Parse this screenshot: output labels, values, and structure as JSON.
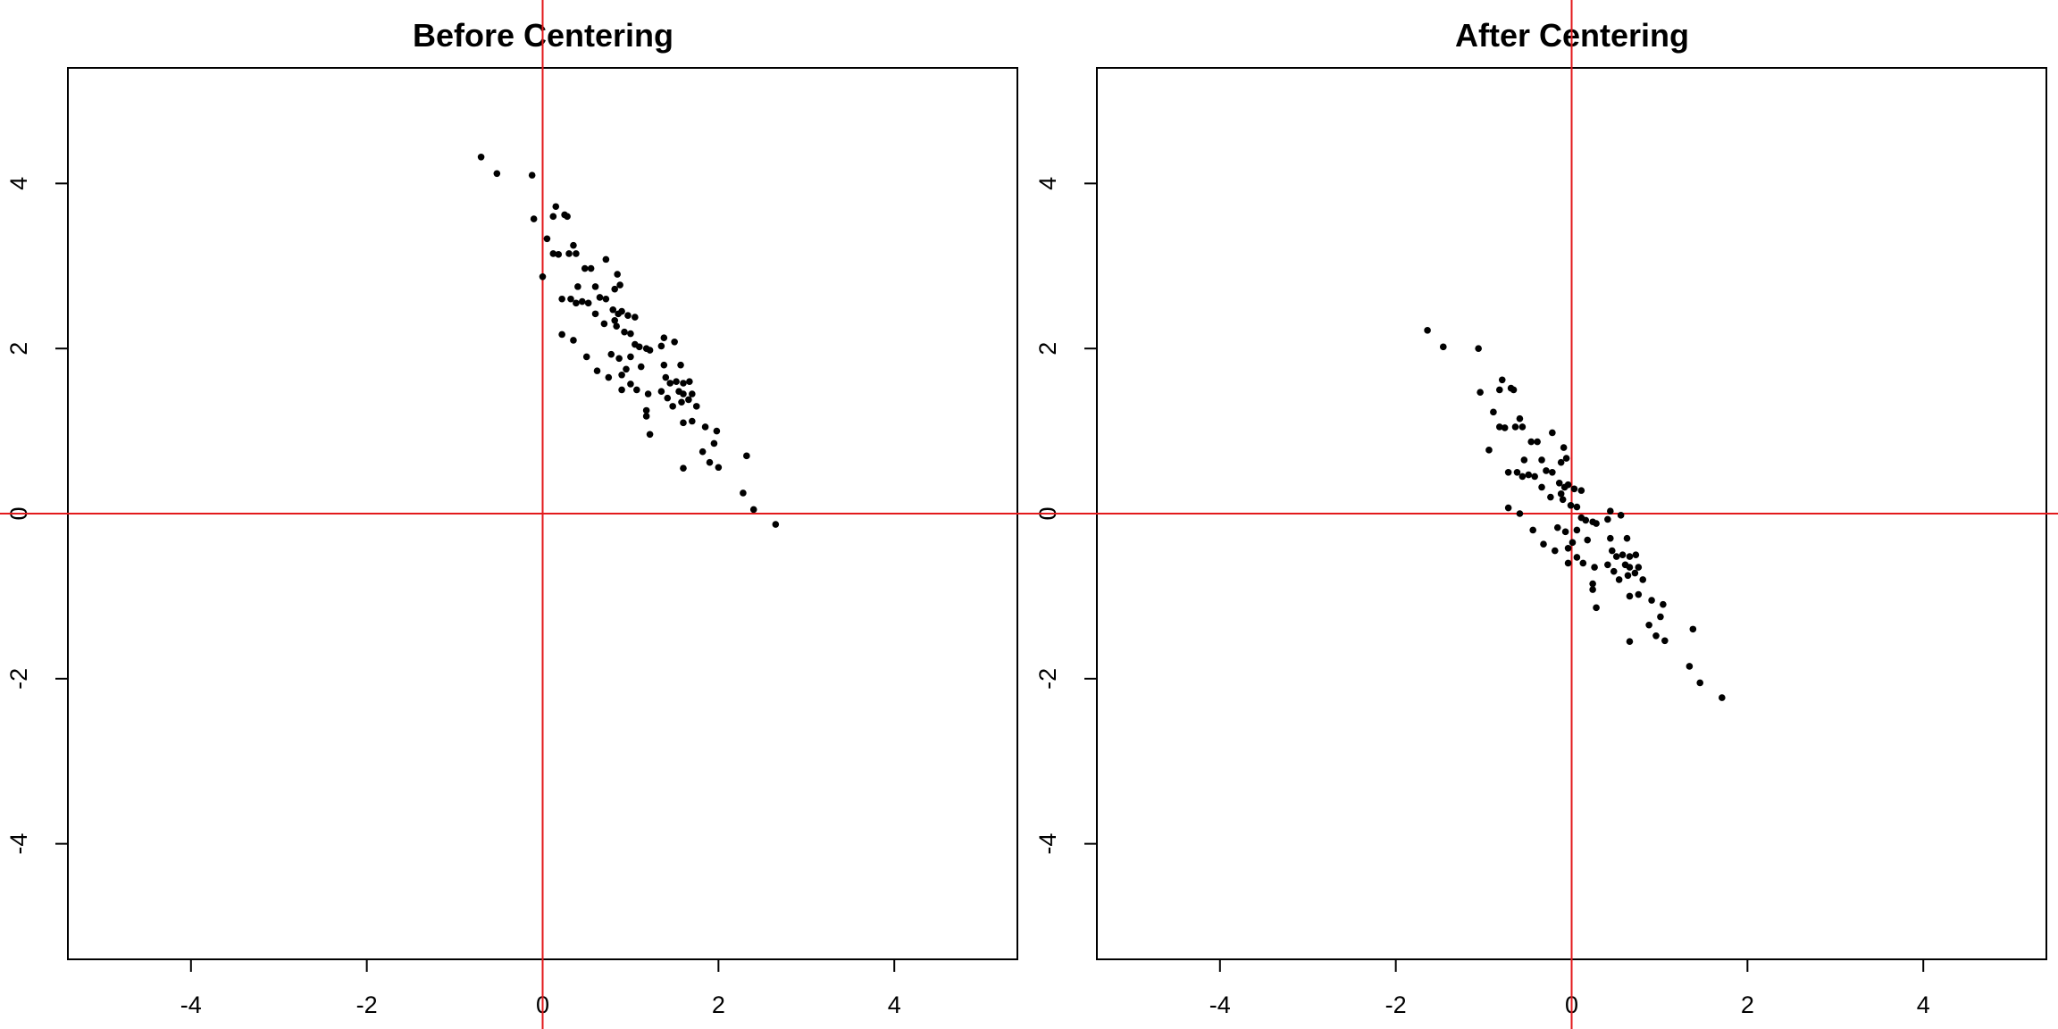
{
  "chart_data": [
    {
      "type": "scatter",
      "title": "Before Centering",
      "xlabel": "",
      "ylabel": "",
      "xlim": [
        -5.4,
        5.4
      ],
      "ylim": [
        -5.4,
        5.4
      ],
      "xticks": [
        -4,
        -2,
        0,
        2,
        4
      ],
      "yticks": [
        -4,
        -2,
        0,
        2,
        4
      ],
      "x_tick_labels": [
        "-4",
        "-2",
        "0",
        "2",
        "4"
      ],
      "y_tick_labels": [
        "-4",
        "-2",
        "0",
        "2",
        "4"
      ],
      "reference_lines": {
        "x": 0,
        "y": 0,
        "color": "#e31a1c"
      },
      "point_color": "#000000",
      "grid": false,
      "points": [
        [
          -0.7,
          4.32
        ],
        [
          -0.52,
          4.12
        ],
        [
          -0.12,
          4.1
        ],
        [
          0.15,
          3.72
        ],
        [
          0.25,
          3.62
        ],
        [
          0.28,
          3.6
        ],
        [
          -0.1,
          3.57
        ],
        [
          0.12,
          3.6
        ],
        [
          0.05,
          3.33
        ],
        [
          0.35,
          3.25
        ],
        [
          0.12,
          3.15
        ],
        [
          0.18,
          3.14
        ],
        [
          0.3,
          3.15
        ],
        [
          0.38,
          3.15
        ],
        [
          0.72,
          3.08
        ],
        [
          0.0,
          2.87
        ],
        [
          0.48,
          2.97
        ],
        [
          0.55,
          2.97
        ],
        [
          0.85,
          2.9
        ],
        [
          0.4,
          2.75
        ],
        [
          0.6,
          2.75
        ],
        [
          0.82,
          2.72
        ],
        [
          0.88,
          2.77
        ],
        [
          0.22,
          2.6
        ],
        [
          0.32,
          2.6
        ],
        [
          0.38,
          2.55
        ],
        [
          0.45,
          2.57
        ],
        [
          0.52,
          2.55
        ],
        [
          0.65,
          2.62
        ],
        [
          0.72,
          2.6
        ],
        [
          0.8,
          2.47
        ],
        [
          0.86,
          2.42
        ],
        [
          0.9,
          2.45
        ],
        [
          0.97,
          2.4
        ],
        [
          1.05,
          2.38
        ],
        [
          0.6,
          2.42
        ],
        [
          0.7,
          2.3
        ],
        [
          0.82,
          2.34
        ],
        [
          0.84,
          2.27
        ],
        [
          0.93,
          2.2
        ],
        [
          1.0,
          2.18
        ],
        [
          0.22,
          2.17
        ],
        [
          0.35,
          2.1
        ],
        [
          1.05,
          2.05
        ],
        [
          1.1,
          2.02
        ],
        [
          1.18,
          2.0
        ],
        [
          1.22,
          1.98
        ],
        [
          1.38,
          2.13
        ],
        [
          1.5,
          2.08
        ],
        [
          1.35,
          2.03
        ],
        [
          1.0,
          1.9
        ],
        [
          0.78,
          1.93
        ],
        [
          0.87,
          1.88
        ],
        [
          0.5,
          1.9
        ],
        [
          1.38,
          1.8
        ],
        [
          1.57,
          1.8
        ],
        [
          0.95,
          1.75
        ],
        [
          1.12,
          1.78
        ],
        [
          0.62,
          1.73
        ],
        [
          0.75,
          1.65
        ],
        [
          0.9,
          1.68
        ],
        [
          1.4,
          1.65
        ],
        [
          1.52,
          1.6
        ],
        [
          1.45,
          1.58
        ],
        [
          1.6,
          1.58
        ],
        [
          1.67,
          1.6
        ],
        [
          1.0,
          1.57
        ],
        [
          1.07,
          1.5
        ],
        [
          1.2,
          1.45
        ],
        [
          1.35,
          1.48
        ],
        [
          1.55,
          1.48
        ],
        [
          1.6,
          1.45
        ],
        [
          1.7,
          1.45
        ],
        [
          1.66,
          1.38
        ],
        [
          0.9,
          1.5
        ],
        [
          1.42,
          1.4
        ],
        [
          1.58,
          1.35
        ],
        [
          1.75,
          1.3
        ],
        [
          1.48,
          1.3
        ],
        [
          1.18,
          1.25
        ],
        [
          1.18,
          1.18
        ],
        [
          1.7,
          1.12
        ],
        [
          1.6,
          1.1
        ],
        [
          1.85,
          1.05
        ],
        [
          1.98,
          1.0
        ],
        [
          1.22,
          0.96
        ],
        [
          1.95,
          0.85
        ],
        [
          1.82,
          0.75
        ],
        [
          2.32,
          0.7
        ],
        [
          1.9,
          0.62
        ],
        [
          2.0,
          0.56
        ],
        [
          1.6,
          0.55
        ],
        [
          2.28,
          0.25
        ],
        [
          2.4,
          0.05
        ],
        [
          2.65,
          -0.13
        ]
      ]
    },
    {
      "type": "scatter",
      "title": "After Centering",
      "xlabel": "",
      "ylabel": "",
      "xlim": [
        -5.4,
        5.4
      ],
      "ylim": [
        -5.4,
        5.4
      ],
      "xticks": [
        -4,
        -2,
        0,
        2,
        4
      ],
      "yticks": [
        -4,
        -2,
        0,
        2,
        4
      ],
      "x_tick_labels": [
        "-4",
        "-2",
        "0",
        "2",
        "4"
      ],
      "y_tick_labels": [
        "-4",
        "-2",
        "0",
        "2",
        "4"
      ],
      "reference_lines": {
        "x": 0,
        "y": 0,
        "color": "#e31a1c"
      },
      "point_color": "#000000",
      "grid": false,
      "points": [
        [
          -1.64,
          2.22
        ],
        [
          -1.46,
          2.02
        ],
        [
          -1.06,
          2.0
        ],
        [
          -0.79,
          1.62
        ],
        [
          -0.69,
          1.52
        ],
        [
          -0.66,
          1.5
        ],
        [
          -1.04,
          1.47
        ],
        [
          -0.82,
          1.5
        ],
        [
          -0.89,
          1.23
        ],
        [
          -0.59,
          1.15
        ],
        [
          -0.82,
          1.05
        ],
        [
          -0.76,
          1.04
        ],
        [
          -0.64,
          1.05
        ],
        [
          -0.56,
          1.05
        ],
        [
          -0.22,
          0.98
        ],
        [
          -0.94,
          0.77
        ],
        [
          -0.46,
          0.87
        ],
        [
          -0.39,
          0.87
        ],
        [
          -0.09,
          0.8
        ],
        [
          -0.54,
          0.65
        ],
        [
          -0.34,
          0.65
        ],
        [
          -0.12,
          0.62
        ],
        [
          -0.06,
          0.67
        ],
        [
          -0.72,
          0.5
        ],
        [
          -0.62,
          0.5
        ],
        [
          -0.56,
          0.45
        ],
        [
          -0.49,
          0.47
        ],
        [
          -0.42,
          0.45
        ],
        [
          -0.29,
          0.52
        ],
        [
          -0.22,
          0.5
        ],
        [
          -0.14,
          0.37
        ],
        [
          -0.08,
          0.32
        ],
        [
          -0.04,
          0.35
        ],
        [
          0.03,
          0.3
        ],
        [
          0.11,
          0.28
        ],
        [
          -0.34,
          0.32
        ],
        [
          -0.24,
          0.2
        ],
        [
          -0.12,
          0.24
        ],
        [
          -0.1,
          0.17
        ],
        [
          -0.01,
          0.1
        ],
        [
          0.06,
          0.08
        ],
        [
          -0.72,
          0.07
        ],
        [
          -0.59,
          0.0
        ],
        [
          0.11,
          -0.05
        ],
        [
          0.16,
          -0.08
        ],
        [
          0.24,
          -0.1
        ],
        [
          0.28,
          -0.12
        ],
        [
          0.44,
          0.03
        ],
        [
          0.56,
          -0.02
        ],
        [
          0.41,
          -0.07
        ],
        [
          0.06,
          -0.2
        ],
        [
          -0.16,
          -0.17
        ],
        [
          -0.07,
          -0.22
        ],
        [
          -0.44,
          -0.2
        ],
        [
          0.44,
          -0.3
        ],
        [
          0.63,
          -0.3
        ],
        [
          0.01,
          -0.35
        ],
        [
          0.18,
          -0.32
        ],
        [
          -0.32,
          -0.37
        ],
        [
          -0.19,
          -0.45
        ],
        [
          -0.04,
          -0.42
        ],
        [
          0.46,
          -0.45
        ],
        [
          0.58,
          -0.5
        ],
        [
          0.51,
          -0.52
        ],
        [
          0.66,
          -0.52
        ],
        [
          0.73,
          -0.5
        ],
        [
          0.06,
          -0.53
        ],
        [
          0.13,
          -0.6
        ],
        [
          0.26,
          -0.65
        ],
        [
          0.41,
          -0.62
        ],
        [
          0.61,
          -0.62
        ],
        [
          0.66,
          -0.65
        ],
        [
          0.76,
          -0.65
        ],
        [
          0.72,
          -0.72
        ],
        [
          -0.04,
          -0.6
        ],
        [
          0.48,
          -0.7
        ],
        [
          0.64,
          -0.75
        ],
        [
          0.81,
          -0.8
        ],
        [
          0.54,
          -0.8
        ],
        [
          0.24,
          -0.85
        ],
        [
          0.24,
          -0.92
        ],
        [
          0.76,
          -0.98
        ],
        [
          0.66,
          -1.0
        ],
        [
          0.91,
          -1.05
        ],
        [
          1.04,
          -1.1
        ],
        [
          0.28,
          -1.14
        ],
        [
          1.01,
          -1.25
        ],
        [
          0.88,
          -1.35
        ],
        [
          1.38,
          -1.4
        ],
        [
          0.96,
          -1.48
        ],
        [
          1.06,
          -1.54
        ],
        [
          0.66,
          -1.55
        ],
        [
          1.34,
          -1.85
        ],
        [
          1.46,
          -2.05
        ],
        [
          1.71,
          -2.23
        ]
      ]
    }
  ]
}
